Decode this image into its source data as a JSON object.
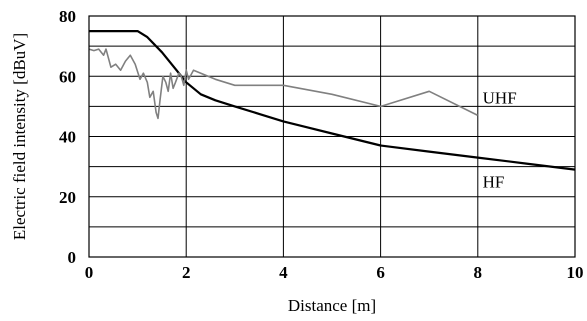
{
  "chart_data": {
    "type": "line",
    "xlabel": "Distance [m]",
    "ylabel": "Electric field intensity [dBuV]",
    "xlim": [
      0,
      10
    ],
    "ylim": [
      0,
      80
    ],
    "x_ticks": [
      "0",
      "2",
      "4",
      "6",
      "8",
      "10"
    ],
    "y_ticks": [
      "0",
      "20",
      "40",
      "60",
      "80"
    ],
    "grid": "on",
    "series": [
      {
        "name": "HF",
        "color": "#000000",
        "points": [
          [
            0,
            75
          ],
          [
            0.5,
            75
          ],
          [
            1.0,
            75
          ],
          [
            1.2,
            73
          ],
          [
            1.5,
            68
          ],
          [
            1.8,
            62
          ],
          [
            2.0,
            58
          ],
          [
            2.3,
            54
          ],
          [
            2.6,
            52
          ],
          [
            3.0,
            50
          ],
          [
            3.5,
            47.5
          ],
          [
            4.0,
            45
          ],
          [
            5.0,
            41
          ],
          [
            6.0,
            37
          ],
          [
            7.0,
            35
          ],
          [
            8.0,
            33
          ],
          [
            9.0,
            31
          ],
          [
            10.0,
            29
          ]
        ]
      },
      {
        "name": "UHF",
        "color": "#808080",
        "points": [
          [
            0,
            69
          ],
          [
            0.1,
            68.5
          ],
          [
            0.2,
            69
          ],
          [
            0.3,
            67
          ],
          [
            0.35,
            69
          ],
          [
            0.45,
            63
          ],
          [
            0.55,
            64
          ],
          [
            0.65,
            62
          ],
          [
            0.75,
            65
          ],
          [
            0.85,
            67
          ],
          [
            0.95,
            64
          ],
          [
            1.05,
            59
          ],
          [
            1.12,
            61
          ],
          [
            1.2,
            58
          ],
          [
            1.25,
            53
          ],
          [
            1.32,
            55
          ],
          [
            1.38,
            48
          ],
          [
            1.42,
            46
          ],
          [
            1.46,
            52
          ],
          [
            1.52,
            60
          ],
          [
            1.58,
            58
          ],
          [
            1.63,
            55
          ],
          [
            1.68,
            61
          ],
          [
            1.73,
            56
          ],
          [
            1.78,
            58
          ],
          [
            1.85,
            61
          ],
          [
            1.9,
            60
          ],
          [
            1.95,
            57
          ],
          [
            2.0,
            62
          ],
          [
            2.05,
            59
          ],
          [
            2.15,
            62
          ],
          [
            2.3,
            61
          ],
          [
            2.6,
            59
          ],
          [
            3.0,
            57
          ],
          [
            4.0,
            57
          ],
          [
            5.0,
            54
          ],
          [
            6.0,
            50
          ],
          [
            7.0,
            55
          ],
          [
            8.0,
            47
          ]
        ]
      }
    ],
    "annotations": [
      {
        "text": "UHF",
        "x": 8.1,
        "y": 53
      },
      {
        "text": "HF",
        "x": 8.1,
        "y": 25
      }
    ]
  }
}
